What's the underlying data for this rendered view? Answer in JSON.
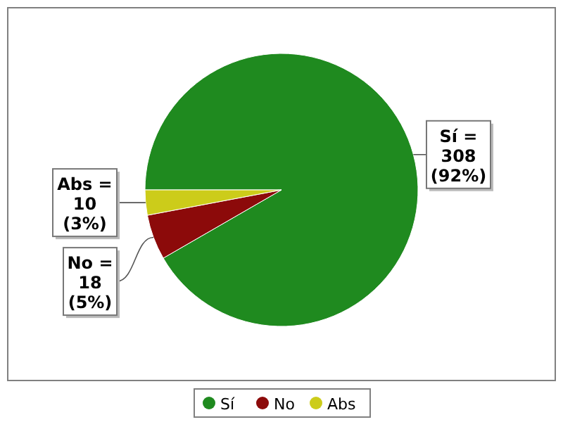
{
  "chart_data": {
    "type": "pie",
    "categories": [
      "Sí",
      "No",
      "Abs"
    ],
    "values": [
      308,
      18,
      10
    ],
    "colors": [
      "#1f8a1f",
      "#8c0a0a",
      "#cccc1a"
    ],
    "value_labels": [
      "Sí =\n308\n(92%)",
      "No =\n18\n(5%)",
      "Abs =\n10\n(3%)"
    ],
    "legend": "bottom"
  }
}
